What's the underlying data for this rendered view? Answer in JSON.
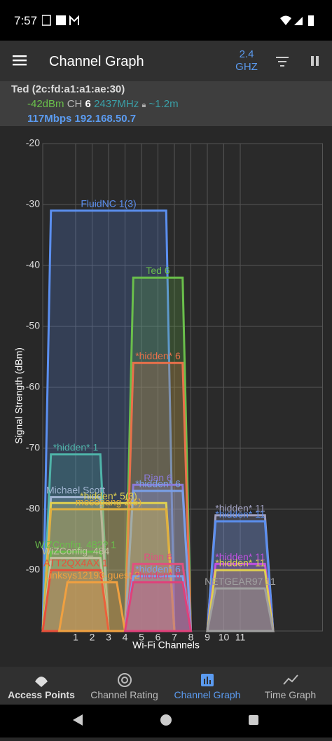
{
  "status_bar": {
    "time": "7:57"
  },
  "app_bar": {
    "title": "Channel Graph",
    "band": "2.4",
    "band_unit": "GHZ"
  },
  "connection": {
    "ssid": "Ted (2c:fd:a1:a1:ae:30)",
    "signal": "-42dBm",
    "ch_label": "CH",
    "channel": "6",
    "frequency": "2437MHz",
    "distance": "~1.2m",
    "speed": "117Mbps 192.168.50.7"
  },
  "chart_data": {
    "type": "area",
    "y_label": "Signal Strength (dBm)",
    "x_label": "Wi-Fi Channels",
    "ylim": [
      -100,
      -20
    ],
    "yticks": [
      -20,
      -30,
      -40,
      -50,
      -60,
      -70,
      -80,
      -90
    ],
    "xlim": [
      -1,
      16
    ],
    "xticks": [
      1,
      2,
      3,
      4,
      5,
      6,
      7,
      8,
      9,
      10,
      11
    ],
    "grid": true,
    "series": [
      {
        "name": "FluidNC 1(3)",
        "color": "#5b8ff0",
        "channels": [
          -1,
          7
        ],
        "values": [
          -31
        ]
      },
      {
        "name": "Ted 6",
        "color": "#6abf4b",
        "channels": [
          4,
          8
        ],
        "values": [
          -42
        ]
      },
      {
        "name": "*hidden* 6",
        "color": "#e8704a",
        "channels": [
          4,
          8
        ],
        "values": [
          -56
        ]
      },
      {
        "name": "*hidden* 1",
        "color": "#4fb3a9",
        "channels": [
          -1,
          3
        ],
        "values": [
          -71
        ]
      },
      {
        "name": "Rian 6",
        "color": "#8a7ad8",
        "channels": [
          4,
          8
        ],
        "values": [
          -76
        ]
      },
      {
        "name": "*hidden* 6",
        "color": "#7aa0e8",
        "channels": [
          4,
          8
        ],
        "values": [
          -77
        ]
      },
      {
        "name": "Michael Scott",
        "color": "#a0b4d0",
        "channels": [
          -1,
          3
        ],
        "values": [
          -78
        ]
      },
      {
        "name": "*hidden* 5(3)",
        "color": "#e0d050",
        "channels": [
          -1,
          7
        ],
        "values": [
          -79
        ]
      },
      {
        "name": "mosegang 3(5)",
        "color": "#e0b040",
        "channels": [
          -1,
          7
        ],
        "values": [
          -80
        ]
      },
      {
        "name": "*hidden* 11",
        "color": "#a0a0c0",
        "channels": [
          9,
          13
        ],
        "values": [
          -81
        ]
      },
      {
        "name": "*hidden* 11",
        "color": "#5b8ff0",
        "channels": [
          9,
          13
        ],
        "values": [
          -82
        ]
      },
      {
        "name": "WiZConfig_482? 1",
        "color": "#6abf4b",
        "channels": [
          -1,
          3
        ],
        "values": [
          -87
        ]
      },
      {
        "name": "WiZConfig_484",
        "color": "#c0c0a0",
        "channels": [
          -1,
          3
        ],
        "values": [
          -88
        ]
      },
      {
        "name": "Rian 6",
        "color": "#e05080",
        "channels": [
          4,
          8
        ],
        "values": [
          -89
        ]
      },
      {
        "name": "*hidden* 11",
        "color": "#c050e0",
        "channels": [
          9,
          13
        ],
        "values": [
          -89
        ]
      },
      {
        "name": "ATT2QX4AX 1",
        "color": "#e8503a",
        "channels": [
          -1,
          3
        ],
        "values": [
          -90
        ]
      },
      {
        "name": "*hidden* 11",
        "color": "#e0d050",
        "channels": [
          9,
          13
        ],
        "values": [
          -90
        ]
      },
      {
        "name": "*hidden* 6",
        "color": "#7aa0e8",
        "channels": [
          4,
          8
        ],
        "values": [
          -91
        ]
      },
      {
        "name": "Linksys12193-guest 2",
        "color": "#f0a040",
        "channels": [
          0,
          4
        ],
        "values": [
          -92
        ]
      },
      {
        "name": "*hidden* 6",
        "color": "#e0407a",
        "channels": [
          4,
          8
        ],
        "values": [
          -92
        ]
      },
      {
        "name": "NETGEAR97 11",
        "color": "#a0a0a0",
        "channels": [
          9,
          13
        ],
        "values": [
          -93
        ]
      }
    ]
  },
  "bottom_nav": {
    "items": [
      "Access Points",
      "Channel Rating",
      "Channel Graph",
      "Time Graph"
    ]
  }
}
